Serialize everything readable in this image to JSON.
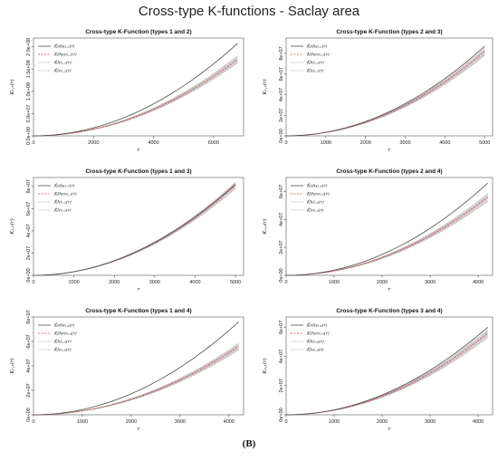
{
  "figure": {
    "title": "Cross-type K-functions - Saclay area",
    "caption": "(B)",
    "colors": {
      "obs": "#4d4d4d",
      "theo": "#d94040",
      "envelope": "#a8a8a8",
      "box": "#555555"
    }
  },
  "chart_data": [
    {
      "type": "line",
      "title": "Cross-type K-Function (types 1 and 2)",
      "xlabel": "r",
      "ylabel": "K₁,₂(r)",
      "xlim": [
        0,
        7000
      ],
      "ylim": [
        0,
        220000000
      ],
      "xticks": [
        0,
        2000,
        4000,
        6000
      ],
      "xtick_labels": [
        "0",
        "2000",
        "4000",
        "6000"
      ],
      "yticks": [
        0,
        50000000,
        100000000,
        150000000,
        200000000
      ],
      "ytick_labels": [
        "0.0e+00",
        "5.0e+07",
        "1.0e+08",
        "1.5e+08",
        "2.0e+08"
      ],
      "legend": [
        "K̂obs₁,₂(r)",
        "Ktheo₁,₂(r)",
        "K̂hi₁,₂(r)",
        "K̂lo₁,₂(r)"
      ],
      "r_max": 6800,
      "obs_at_max": 208000000,
      "theo_at_max": 172000000,
      "hi_at_max": 180000000,
      "lo_at_max": 164000000
    },
    {
      "type": "line",
      "title": "Cross-type K-Function (types 2 and 3)",
      "xlabel": "r",
      "ylabel": "K₂,₃(r)",
      "xlim": [
        0,
        5200
      ],
      "ylim": [
        0,
        95000000
      ],
      "xticks": [
        0,
        1000,
        2000,
        3000,
        4000,
        5000
      ],
      "xtick_labels": [
        "0",
        "1000",
        "2000",
        "3000",
        "4000",
        "5000"
      ],
      "yticks": [
        0,
        20000000,
        40000000,
        60000000,
        80000000
      ],
      "ytick_labels": [
        "0e+00",
        "2e+07",
        "4e+07",
        "6e+07",
        "8e+07"
      ],
      "legend": [
        "K̂obs₂,₃(r)",
        "Ktheo₂,₃(r)",
        "K̂hi₂,₃(r)",
        "K̂lo₂,₃(r)"
      ],
      "r_max": 5000,
      "obs_at_max": 87000000,
      "theo_at_max": 82000000,
      "hi_at_max": 85000000,
      "lo_at_max": 78000000
    },
    {
      "type": "line",
      "title": "Cross-type K-Function (types 1 and 3)",
      "xlabel": "r",
      "ylabel": "K₁,₃(r)",
      "xlim": [
        0,
        5200
      ],
      "ylim": [
        0,
        88000000
      ],
      "xticks": [
        0,
        1000,
        2000,
        3000,
        4000,
        5000
      ],
      "xtick_labels": [
        "0",
        "1000",
        "2000",
        "3000",
        "4000",
        "5000"
      ],
      "yticks": [
        0,
        20000000,
        40000000,
        60000000,
        80000000
      ],
      "ytick_labels": [
        "0e+00",
        "2e+07",
        "4e+07",
        "6e+07",
        "8e+07"
      ],
      "legend": [
        "K̂obs₁,₃(r)",
        "Ktheo₁,₃(r)",
        "K̂hi₁,₃(r)",
        "K̂lo₁,₃(r)"
      ],
      "r_max": 5000,
      "obs_at_max": 82000000,
      "theo_at_max": 81000000,
      "hi_at_max": 84000000,
      "lo_at_max": 78000000
    },
    {
      "type": "line",
      "title": "Cross-type K-Function (types 2 and 4)",
      "xlabel": "r",
      "ylabel": "K₂,₄(r)",
      "xlim": [
        0,
        4300
      ],
      "ylim": [
        0,
        70000000
      ],
      "xticks": [
        0,
        1000,
        2000,
        3000,
        4000
      ],
      "xtick_labels": [
        "0",
        "1000",
        "2000",
        "3000",
        "4000"
      ],
      "yticks": [
        0,
        20000000,
        40000000,
        60000000
      ],
      "ytick_labels": [
        "0e+00",
        "2e+07",
        "4e+07",
        "6e+07"
      ],
      "legend": [
        "K̂obs₂,₄(r)",
        "Ktheo₂,₄(r)",
        "K̂hi₂,₄(r)",
        "K̂lo₂,₄(r)"
      ],
      "r_max": 4200,
      "obs_at_max": 66000000,
      "theo_at_max": 56000000,
      "hi_at_max": 58500000,
      "lo_at_max": 53000000
    },
    {
      "type": "line",
      "title": "Cross-type K-Function (types 1 and 4)",
      "xlabel": "r",
      "ylabel": "K₁,₄(r)",
      "xlim": [
        0,
        4300
      ],
      "ylim": [
        0,
        80000000
      ],
      "xticks": [
        0,
        1000,
        2000,
        3000,
        4000
      ],
      "xtick_labels": [
        "0",
        "1000",
        "2000",
        "3000",
        "4000"
      ],
      "yticks": [
        0,
        20000000,
        40000000,
        60000000,
        80000000
      ],
      "ytick_labels": [
        "0e+00",
        "2e+07",
        "4e+07",
        "6e+07",
        "8e+07"
      ],
      "legend": [
        "K̂obs₁,₄(r)",
        "Ktheo₁,₄(r)",
        "K̂hi₁,₄(r)",
        "K̂lo₁,₄(r)"
      ],
      "r_max": 4200,
      "obs_at_max": 76000000,
      "theo_at_max": 56000000,
      "hi_at_max": 58500000,
      "lo_at_max": 53000000
    },
    {
      "type": "line",
      "title": "Cross-type K-Function (types 3 and 4)",
      "xlabel": "r",
      "ylabel": "K₃,₄(r)",
      "xlim": [
        0,
        4300
      ],
      "ylim": [
        0,
        67000000
      ],
      "xticks": [
        0,
        1000,
        2000,
        3000,
        4000
      ],
      "xtick_labels": [
        "0",
        "1000",
        "2000",
        "3000",
        "4000"
      ],
      "yticks": [
        0,
        20000000,
        40000000,
        60000000
      ],
      "ytick_labels": [
        "0e+00",
        "2e+07",
        "4e+07",
        "6e+07"
      ],
      "legend": [
        "K̂obs₃,₄(r)",
        "Ktheo₃,₄(r)",
        "K̂hi₃,₄(r)",
        "K̂lo₃,₄(r)"
      ],
      "r_max": 4200,
      "obs_at_max": 60000000,
      "theo_at_max": 56000000,
      "hi_at_max": 58500000,
      "lo_at_max": 53000000
    }
  ]
}
